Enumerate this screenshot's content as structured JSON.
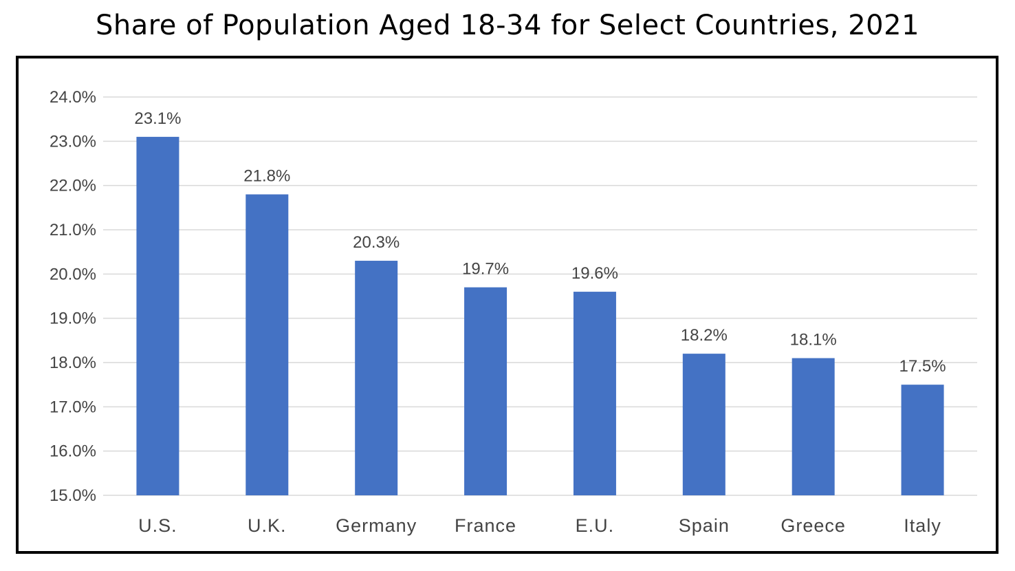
{
  "chart_data": {
    "type": "bar",
    "title": "Share of Population Aged 18-34 for Select Countries, 2021",
    "categories": [
      "U.S.",
      "U.K.",
      "Germany",
      "France",
      "E.U.",
      "Spain",
      "Greece",
      "Italy"
    ],
    "values": [
      23.1,
      21.8,
      20.3,
      19.7,
      19.6,
      18.2,
      18.1,
      17.5
    ],
    "data_labels": [
      "23.1%",
      "21.8%",
      "20.3%",
      "19.7%",
      "19.6%",
      "18.2%",
      "18.1%",
      "17.5%"
    ],
    "ylim": [
      15.0,
      24.0
    ],
    "yticks": [
      "15.0%",
      "16.0%",
      "17.0%",
      "18.0%",
      "19.0%",
      "20.0%",
      "21.0%",
      "22.0%",
      "23.0%",
      "24.0%"
    ],
    "ytick_values": [
      15,
      16,
      17,
      18,
      19,
      20,
      21,
      22,
      23,
      24
    ],
    "xlabel": "",
    "ylabel": "",
    "grid": true,
    "legend": "none",
    "colors": {
      "bar": "#4472C4",
      "grid": "#D9D9D9",
      "text": "#444444",
      "frame": "#000000"
    }
  }
}
